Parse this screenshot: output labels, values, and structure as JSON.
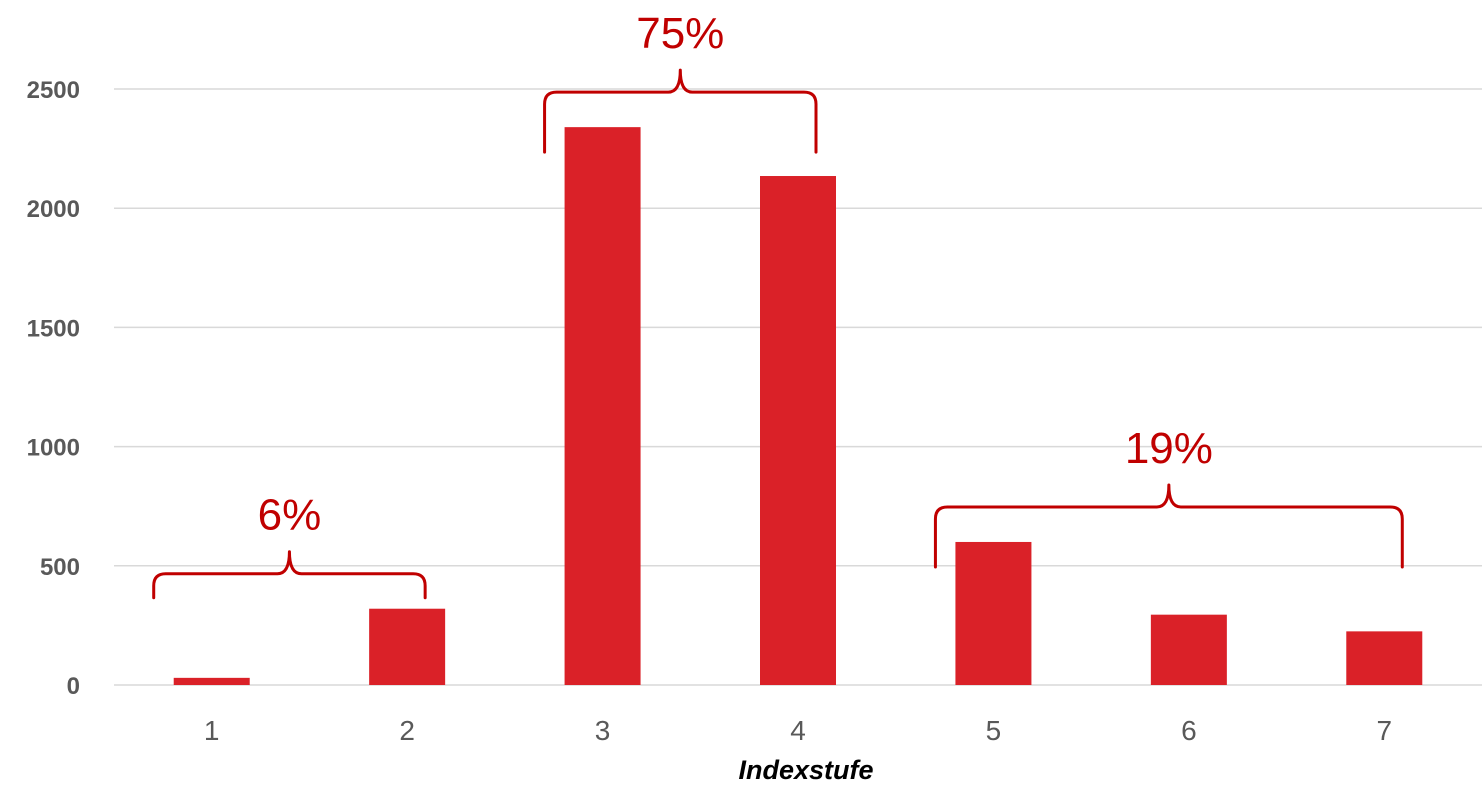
{
  "chart_data": {
    "type": "bar",
    "categories": [
      "1",
      "2",
      "3",
      "4",
      "5",
      "6",
      "7"
    ],
    "values": [
      30,
      320,
      2340,
      2135,
      600,
      295,
      225
    ],
    "xlabel": "Indexstufe",
    "ylabel": "",
    "ylim": [
      0,
      2500
    ],
    "yticks": [
      0,
      500,
      1000,
      1500,
      2000,
      2500
    ],
    "grid": true,
    "bar_color": "#DA2128",
    "annotation_color": "#C00000",
    "annotations": [
      {
        "label": "6%",
        "from_category": "1",
        "to_category": "2"
      },
      {
        "label": "75%",
        "from_category": "3",
        "to_category": "4"
      },
      {
        "label": "19%",
        "from_category": "5",
        "to_category": "7"
      }
    ]
  }
}
